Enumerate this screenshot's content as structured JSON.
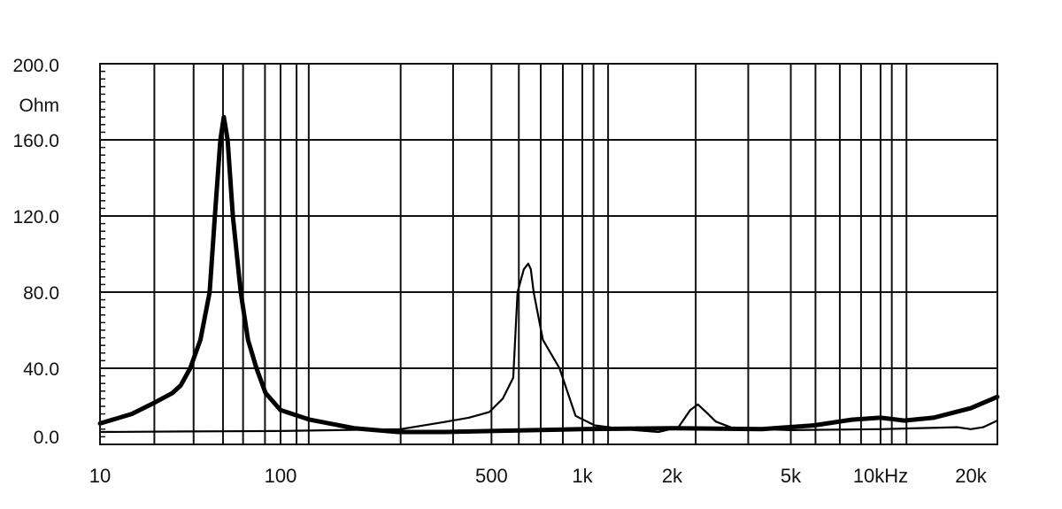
{
  "chart_data": {
    "type": "line",
    "title": "",
    "xlabel": "",
    "ylabel": "Ohm",
    "x_scale": "log",
    "xlim": [
      10,
      24500
    ],
    "ylim": [
      0,
      200
    ],
    "grid": true,
    "y_ticks": [
      {
        "value": 200,
        "label": "200.0"
      },
      {
        "value": 160,
        "label": "160.0"
      },
      {
        "value": 120,
        "label": "120.0"
      },
      {
        "value": 80,
        "label": "80.0"
      },
      {
        "value": 40,
        "label": "40.0"
      },
      {
        "value": 0,
        "label": "0.0"
      }
    ],
    "y_unit_label": "Ohm",
    "x_ticks": [
      {
        "value": 10,
        "label": "10"
      },
      {
        "value": 100,
        "label": "100"
      },
      {
        "value": 500,
        "label": "500"
      },
      {
        "value": 1000,
        "label": "1k"
      },
      {
        "value": 2000,
        "label": "2k"
      },
      {
        "value": 5000,
        "label": "5k"
      },
      {
        "value": 10000,
        "label": "10kHz"
      },
      {
        "value": 20000,
        "label": "20k"
      }
    ],
    "x_gridlines": [
      20,
      33,
      48,
      62,
      82,
      100,
      113,
      124,
      250,
      373,
      500,
      616,
      728,
      862,
      1000,
      1090,
      1220,
      2400,
      3600,
      5000,
      6050,
      7300,
      8600,
      10000,
      10900,
      12200
    ],
    "series": [
      {
        "style": "thick",
        "color": "#000000",
        "points": [
          [
            10,
            11
          ],
          [
            15,
            16
          ],
          [
            20.1,
            22
          ],
          [
            25.2,
            27
          ],
          [
            28,
            31
          ],
          [
            31.6,
            40
          ],
          [
            36,
            55
          ],
          [
            40.5,
            80
          ],
          [
            43.3,
            120
          ],
          [
            46.4,
            160
          ],
          [
            48.5,
            172
          ],
          [
            50.9,
            160
          ],
          [
            54.4,
            120
          ],
          [
            60.2,
            80
          ],
          [
            66,
            55
          ],
          [
            73.6,
            40
          ],
          [
            82.5,
            27
          ],
          [
            100,
            18
          ],
          [
            125,
            13
          ],
          [
            175,
            8.5
          ],
          [
            245,
            6.5
          ],
          [
            350,
            6.5
          ],
          [
            500,
            7
          ],
          [
            1000,
            8
          ],
          [
            2000,
            8.5
          ],
          [
            4000,
            8
          ],
          [
            6000,
            10
          ],
          [
            8000,
            13
          ],
          [
            10000,
            14
          ],
          [
            12000,
            12.5
          ],
          [
            15000,
            14
          ],
          [
            20000,
            19
          ],
          [
            24500,
            25
          ]
        ]
      },
      {
        "style": "thin",
        "color": "#000000",
        "points": [
          [
            10,
            6.5
          ],
          [
            30,
            6.8
          ],
          [
            100,
            7
          ],
          [
            250,
            8
          ],
          [
            344,
            11.6
          ],
          [
            420,
            14
          ],
          [
            492,
            17
          ],
          [
            545,
            24
          ],
          [
            590,
            35
          ],
          [
            610,
            80
          ],
          [
            640,
            92
          ],
          [
            662,
            95
          ],
          [
            675,
            92
          ],
          [
            690,
            80
          ],
          [
            740,
            55
          ],
          [
            840,
            40
          ],
          [
            950,
            15
          ],
          [
            1100,
            10
          ],
          [
            1300,
            8.5
          ],
          [
            1500,
            7.5
          ],
          [
            1800,
            6.5
          ],
          [
            2100,
            9
          ],
          [
            2300,
            18
          ],
          [
            2440,
            21
          ],
          [
            2600,
            17
          ],
          [
            2800,
            12
          ],
          [
            3200,
            8.5
          ],
          [
            5000,
            7.5
          ],
          [
            10000,
            8
          ],
          [
            18000,
            9
          ],
          [
            20000,
            8
          ],
          [
            22000,
            9
          ],
          [
            24500,
            12.5
          ]
        ]
      }
    ]
  }
}
